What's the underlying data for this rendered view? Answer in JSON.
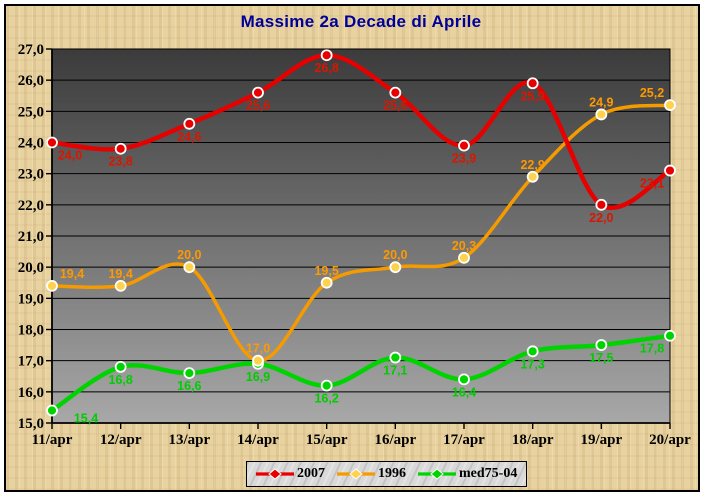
{
  "chart_data": {
    "type": "line",
    "title": "Massime 2a Decade di Aprile",
    "title_color": "#000099",
    "categories": [
      "11/apr",
      "12/apr",
      "13/apr",
      "14/apr",
      "15/apr",
      "16/apr",
      "17/apr",
      "18/apr",
      "19/apr",
      "20/apr"
    ],
    "series": [
      {
        "name": "2007",
        "color": "#e60000",
        "marker_color": "#e60000",
        "label_color": "#da1600",
        "label_position": "below",
        "values": [
          24.0,
          23.8,
          24.6,
          25.6,
          26.8,
          25.6,
          23.9,
          25.9,
          22.0,
          23.1
        ],
        "labels": [
          "24,0",
          "23,8",
          "24,6",
          "25,6",
          "26,8",
          "25,6",
          "23,9",
          "25,9",
          "22,0",
          "23,1"
        ]
      },
      {
        "name": "1996",
        "color": "#f59b00",
        "marker_color": "#ffd24d",
        "label_color": "#ff9900",
        "label_position": "above",
        "values": [
          19.4,
          19.4,
          20.0,
          17.0,
          19.5,
          20.0,
          20.3,
          22.9,
          24.9,
          25.2
        ],
        "labels": [
          "19,4",
          "19,4",
          "20,0",
          "17,0",
          "19,5",
          "20,0",
          "20,3",
          "22,9",
          "24,9",
          "25,2"
        ]
      },
      {
        "name": "med75-04",
        "color": "#00d400",
        "marker_color": "#00d400",
        "label_color": "#00cd00",
        "label_position": "below",
        "values": [
          15.4,
          16.8,
          16.6,
          16.9,
          16.2,
          17.1,
          16.4,
          17.3,
          17.5,
          17.8
        ],
        "labels": [
          "15,4",
          "16,8",
          "16,6",
          "16,9",
          "16,2",
          "17,1",
          "16,4",
          "17,3",
          "17,5",
          "17,8"
        ]
      }
    ],
    "y_axis": {
      "min": 15,
      "max": 27,
      "step": 1,
      "tick_labels": [
        "15,0",
        "16,0",
        "17,0",
        "18,0",
        "19,0",
        "20,0",
        "21,0",
        "22,0",
        "23,0",
        "24,0",
        "25,0",
        "26,0",
        "27,0"
      ]
    },
    "legend": {
      "position": "bottom",
      "items": [
        "2007",
        "1996",
        "med75-04"
      ]
    },
    "plot": {
      "bg_top": "#3b3b3b",
      "bg_bottom": "#a8a8a8",
      "grid_color": "#000000",
      "axis_color": "#000000",
      "grid_on": true
    },
    "frame": {
      "background": "#e8d2a0",
      "border_color": "#000000",
      "legend_background": "#d9d9d9"
    }
  }
}
